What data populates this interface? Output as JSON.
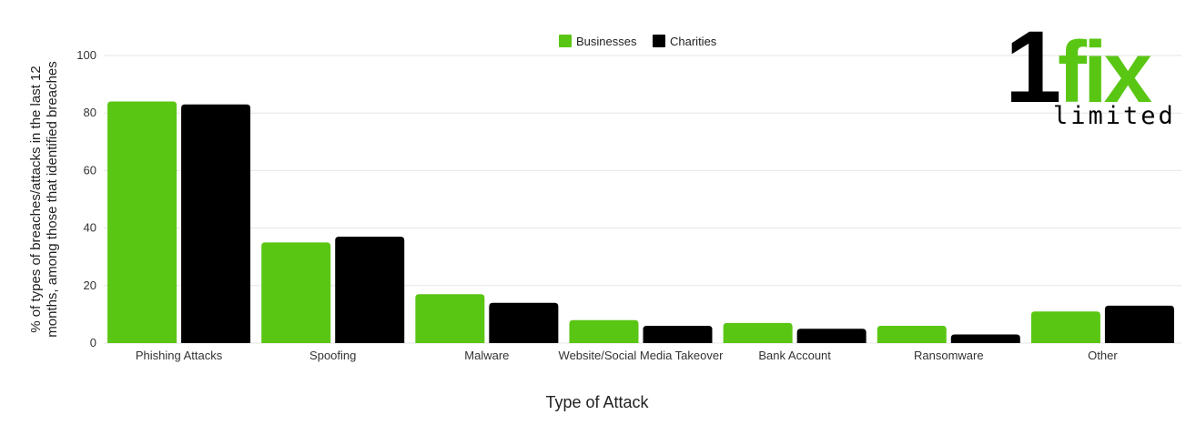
{
  "colors": {
    "businesses": "#5ac614",
    "charities": "#000000",
    "grid": "#e6e6e6"
  },
  "logo": {
    "number": "1",
    "word": "fix",
    "subword": "limited"
  },
  "chart_data": {
    "type": "bar",
    "categories": [
      "Phishing Attacks",
      "Spoofing",
      "Malware",
      "Website/Social Media Takeover",
      "Bank Account",
      "Ransomware",
      "Other"
    ],
    "series": [
      {
        "name": "Businesses",
        "values": [
          84,
          35,
          17,
          8,
          7,
          6,
          11
        ]
      },
      {
        "name": "Charities",
        "values": [
          83,
          37,
          14,
          6,
          5,
          3,
          13
        ]
      }
    ],
    "xlabel": "Type of Attack",
    "ylabel_lines": [
      "% of types of breaches/attacks in the last 12",
      "months, among those that identified breaches"
    ],
    "ylim": [
      0,
      100
    ],
    "yticks": [
      0,
      20,
      40,
      60,
      80,
      100
    ],
    "grid": true,
    "legend_position": "top-center"
  }
}
